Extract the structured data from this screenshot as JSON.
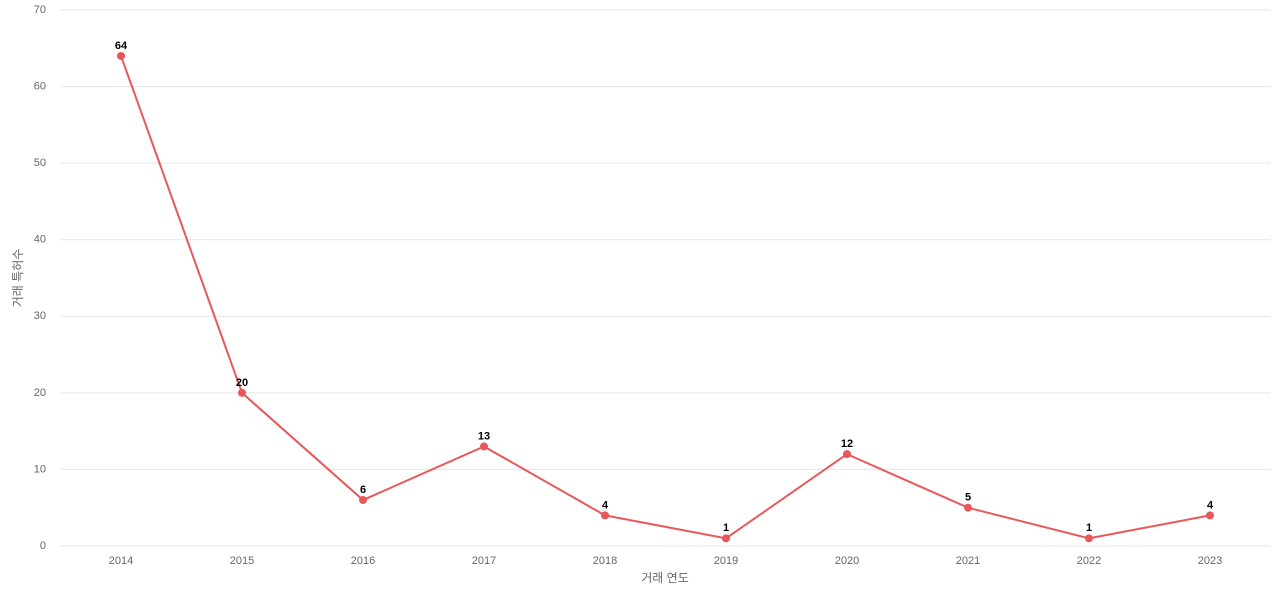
{
  "chart_data": {
    "type": "line",
    "x_label": "거래 연도",
    "y_label": "거래 특허수",
    "categories": [
      "2014",
      "2015",
      "2016",
      "2017",
      "2018",
      "2019",
      "2020",
      "2021",
      "2022",
      "2023"
    ],
    "series": [
      {
        "name": "거래 특허수",
        "color": "#e8585a",
        "values": [
          64,
          20,
          6,
          13,
          4,
          1,
          12,
          5,
          1,
          4
        ]
      }
    ],
    "ylim": [
      0,
      70
    ],
    "yticks": [
      0,
      10,
      20,
      30,
      40,
      50,
      60,
      70
    ],
    "grid": true
  }
}
